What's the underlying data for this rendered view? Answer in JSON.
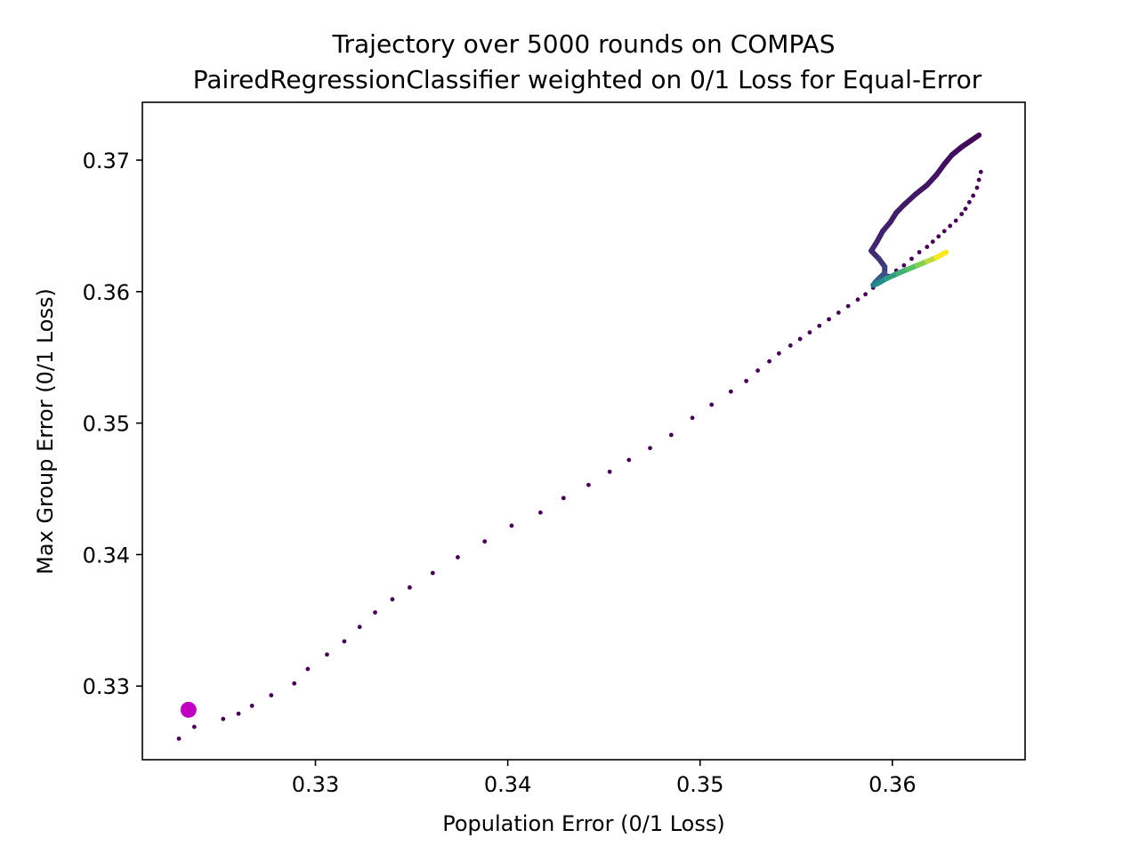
{
  "chart_data": {
    "type": "scatter",
    "title_line1": "Trajectory over 5000 rounds on COMPAS",
    "title_line2": "PairedRegressionClassifier weighted on 0/1 Loss for Equal-Error",
    "xlabel": "Population Error (0/1 Loss)",
    "ylabel": "Max Group Error (0/1 Loss)",
    "xlim": [
      0.321,
      0.3669
    ],
    "ylim": [
      0.3244,
      0.3744
    ],
    "x_ticks": [
      0.33,
      0.34,
      0.35,
      0.36
    ],
    "y_ticks": [
      0.33,
      0.34,
      0.35,
      0.36,
      0.37
    ],
    "x_tick_labels": [
      "0.33",
      "0.34",
      "0.35",
      "0.36"
    ],
    "y_tick_labels": [
      "0.33",
      "0.34",
      "0.35",
      "0.36",
      "0.37"
    ],
    "grid": false,
    "colormap": "viridis",
    "highlight_color": "#c000c0",
    "highlight_point": {
      "x": 0.3234,
      "y": 0.3282
    },
    "early_points": [
      [
        0.3229,
        0.326
      ],
      [
        0.3237,
        0.3269
      ],
      [
        0.3252,
        0.3275
      ],
      [
        0.326,
        0.3279
      ],
      [
        0.3267,
        0.3285
      ],
      [
        0.3277,
        0.3293
      ],
      [
        0.3289,
        0.3302
      ],
      [
        0.3296,
        0.3313
      ],
      [
        0.3306,
        0.3324
      ],
      [
        0.3315,
        0.3334
      ],
      [
        0.3323,
        0.3345
      ],
      [
        0.3331,
        0.3356
      ],
      [
        0.334,
        0.3366
      ],
      [
        0.3349,
        0.3375
      ],
      [
        0.3361,
        0.3386
      ],
      [
        0.3374,
        0.3398
      ],
      [
        0.3388,
        0.341
      ],
      [
        0.3402,
        0.3422
      ],
      [
        0.3417,
        0.3432
      ],
      [
        0.3429,
        0.3443
      ],
      [
        0.3442,
        0.3453
      ],
      [
        0.3453,
        0.3463
      ],
      [
        0.3463,
        0.3472
      ],
      [
        0.3474,
        0.3481
      ],
      [
        0.3485,
        0.3491
      ],
      [
        0.3496,
        0.3504
      ],
      [
        0.3506,
        0.3514
      ],
      [
        0.3516,
        0.3524
      ],
      [
        0.3524,
        0.3532
      ],
      [
        0.353,
        0.354
      ],
      [
        0.3536,
        0.3547
      ],
      [
        0.3541,
        0.3553
      ],
      [
        0.3547,
        0.3559
      ],
      [
        0.3552,
        0.3564
      ],
      [
        0.3557,
        0.3569
      ],
      [
        0.3562,
        0.3574
      ],
      [
        0.3567,
        0.3579
      ],
      [
        0.3572,
        0.3584
      ],
      [
        0.3577,
        0.3589
      ],
      [
        0.3582,
        0.3594
      ],
      [
        0.3586,
        0.3598
      ],
      [
        0.359,
        0.3603
      ],
      [
        0.3594,
        0.3607
      ],
      [
        0.3598,
        0.3612
      ],
      [
        0.3602,
        0.3616
      ],
      [
        0.3606,
        0.362
      ],
      [
        0.361,
        0.3625
      ],
      [
        0.3614,
        0.363
      ],
      [
        0.3618,
        0.3634
      ],
      [
        0.3621,
        0.3638
      ],
      [
        0.3624,
        0.3642
      ],
      [
        0.3627,
        0.3646
      ],
      [
        0.363,
        0.365
      ],
      [
        0.3633,
        0.3654
      ],
      [
        0.3636,
        0.3659
      ],
      [
        0.3638,
        0.3663
      ],
      [
        0.364,
        0.3668
      ],
      [
        0.3642,
        0.3673
      ],
      [
        0.3644,
        0.3679
      ],
      [
        0.3645,
        0.3685
      ],
      [
        0.3646,
        0.3691
      ]
    ],
    "trajectory_path": [
      [
        0.3645,
        0.3719
      ],
      [
        0.3641,
        0.3715
      ],
      [
        0.3636,
        0.371
      ],
      [
        0.3631,
        0.3704
      ],
      [
        0.3627,
        0.3697
      ],
      [
        0.3623,
        0.3689
      ],
      [
        0.3618,
        0.3681
      ],
      [
        0.3612,
        0.3674
      ],
      [
        0.3606,
        0.3666
      ],
      [
        0.3602,
        0.366
      ],
      [
        0.3599,
        0.3653
      ],
      [
        0.3595,
        0.3646
      ],
      [
        0.3592,
        0.3638
      ],
      [
        0.3589,
        0.3631
      ],
      [
        0.3593,
        0.3625
      ],
      [
        0.3596,
        0.3619
      ],
      [
        0.3596,
        0.3614
      ],
      [
        0.3593,
        0.361
      ],
      [
        0.3591,
        0.3607
      ],
      [
        0.359,
        0.3605
      ],
      [
        0.3592,
        0.3606
      ],
      [
        0.3597,
        0.361
      ],
      [
        0.3603,
        0.3614
      ],
      [
        0.3608,
        0.3617
      ],
      [
        0.3613,
        0.362
      ],
      [
        0.3618,
        0.3623
      ],
      [
        0.3623,
        0.3626
      ],
      [
        0.3628,
        0.363
      ]
    ]
  }
}
